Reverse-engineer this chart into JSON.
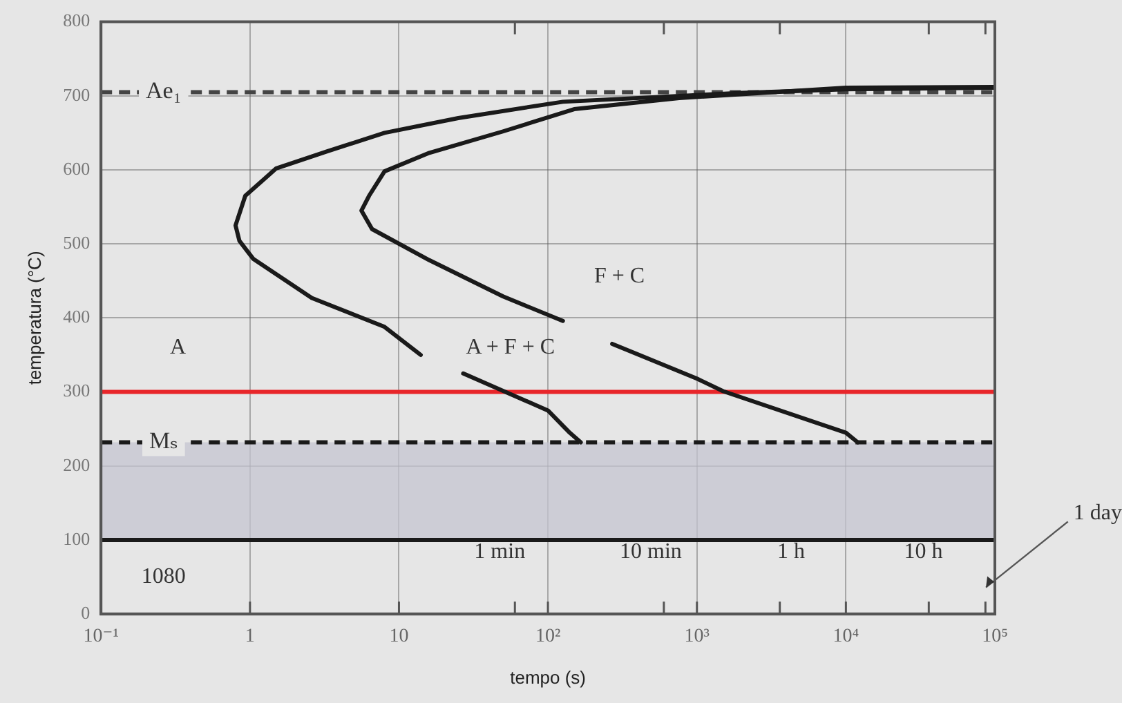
{
  "chart_data": {
    "type": "line",
    "xlabel": "tempo (s)",
    "ylabel": "temperatura (°C)",
    "log": "x",
    "xlim": [
      0.1,
      100000
    ],
    "xticks": [
      {
        "value": 0.1,
        "label": "10⁻¹"
      },
      1,
      10,
      {
        "value": 60,
        "label": null
      },
      {
        "value": 100,
        "label": "10²"
      },
      {
        "value": 600,
        "label": null
      },
      {
        "value": 1000,
        "label": "10³"
      },
      {
        "value": 3600,
        "label": null
      },
      {
        "value": 10000,
        "label": "10⁴"
      },
      {
        "value": 36000,
        "label": null
      },
      {
        "value": 86400,
        "label": null
      },
      {
        "value": 100000,
        "label": "10⁵"
      }
    ],
    "ylim": [
      0,
      800
    ],
    "yticks": [
      0,
      100,
      200,
      300,
      400,
      500,
      600,
      700,
      800
    ],
    "grid": true,
    "legend": false,
    "marker": "none",
    "series": [
      {
        "color": "#1a1a1a",
        "x": [
          100000,
          10000,
          2000,
          126,
          25,
          8,
          3.3,
          1.5,
          0.93,
          0.8,
          0.85,
          1.05,
          2.6,
          8,
          14,
          20,
          27,
          100,
          140,
          166
        ],
        "values": [
          711,
          709,
          704,
          692,
          670,
          650,
          625,
          602,
          565,
          525,
          504,
          480,
          427,
          388,
          350,
          null,
          325,
          275,
          245,
          232
        ]
      },
      {
        "color": "#1a1a1a",
        "x": [
          100000,
          10000,
          760,
          150,
          50,
          16,
          8,
          6.3,
          5.6,
          6.6,
          16,
          50,
          126,
          180,
          270,
          1000,
          1500,
          10000,
          12000
        ],
        "values": [
          712,
          711,
          697,
          682,
          652,
          623,
          598,
          565,
          545,
          520,
          478,
          429,
          396,
          null,
          365,
          318,
          301,
          245,
          232
        ]
      }
    ],
    "ref_lines": [
      {
        "axis": "y",
        "value": 705,
        "label": "Ae₁",
        "color": "#444444",
        "line_style": "dashed"
      },
      {
        "axis": "y",
        "value": 232,
        "label": "Mₛ",
        "color": "#1a1a1a",
        "line_style": "dashed"
      },
      {
        "axis": "y",
        "value": 300,
        "color": "#e8262a",
        "line_style": "solid"
      },
      {
        "axis": "y",
        "value": 100,
        "color": "#1a1a1a",
        "line_style": "solid"
      }
    ],
    "bands": [
      {
        "axis": "y",
        "from": 100,
        "to": 232,
        "color": "#c4c4d0"
      }
    ],
    "annotations": [
      "A",
      "A + F + C",
      "F + C",
      "1080",
      "1 min",
      "10 min",
      "1 h",
      "10 h",
      "1 day"
    ]
  }
}
